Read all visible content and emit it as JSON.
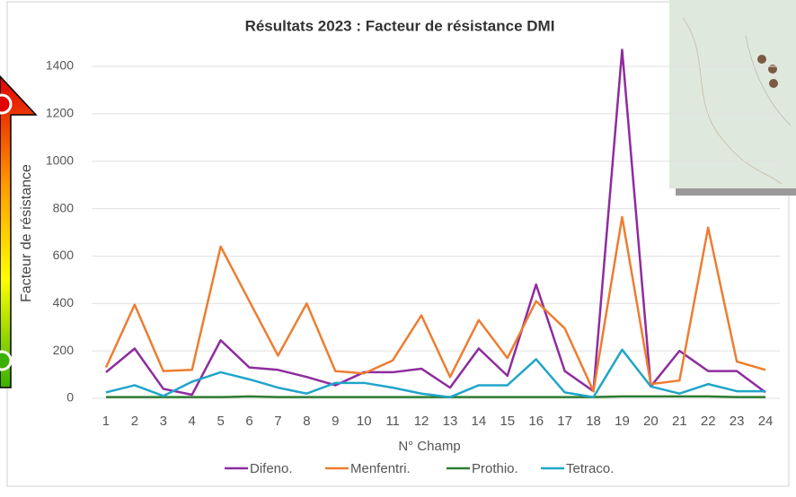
{
  "chart_data": {
    "type": "line",
    "title": "Résultats 2023 : Facteur de résistance DMI",
    "x_label": "N° Champ",
    "y_label": "Facteur de résistance",
    "categories": [
      "1",
      "2",
      "3",
      "4",
      "5",
      "6",
      "7",
      "8",
      "9",
      "10",
      "11",
      "12",
      "13",
      "14",
      "15",
      "16",
      "17",
      "18",
      "19",
      "20",
      "21",
      "22",
      "23",
      "24"
    ],
    "series": [
      {
        "name": "Difeno.",
        "color": "#8e2c9e",
        "values": [
          110,
          210,
          40,
          15,
          245,
          130,
          120,
          90,
          55,
          110,
          110,
          125,
          45,
          210,
          95,
          480,
          115,
          30,
          1470,
          50,
          200,
          115,
          115,
          25
        ]
      },
      {
        "name": "Menfentri.",
        "color": "#ed7d31",
        "values": [
          130,
          395,
          115,
          120,
          640,
          410,
          180,
          400,
          115,
          105,
          160,
          350,
          90,
          330,
          170,
          410,
          295,
          30,
          765,
          60,
          75,
          720,
          155,
          120
        ]
      },
      {
        "name": "Prothio.",
        "color": "#2e7d32",
        "values": [
          5,
          5,
          5,
          5,
          5,
          8,
          5,
          5,
          5,
          5,
          5,
          5,
          5,
          5,
          5,
          5,
          5,
          5,
          8,
          8,
          8,
          8,
          5,
          5
        ]
      },
      {
        "name": "Tetraco.",
        "color": "#21a5c9",
        "values": [
          25,
          55,
          10,
          70,
          110,
          80,
          45,
          20,
          65,
          65,
          45,
          20,
          5,
          55,
          55,
          165,
          25,
          5,
          205,
          50,
          20,
          60,
          30,
          30
        ]
      }
    ],
    "ylim": [
      0,
      1500
    ],
    "yticks": [
      0,
      200,
      400,
      600,
      800,
      1000,
      1200,
      1400
    ],
    "grid": true
  }
}
